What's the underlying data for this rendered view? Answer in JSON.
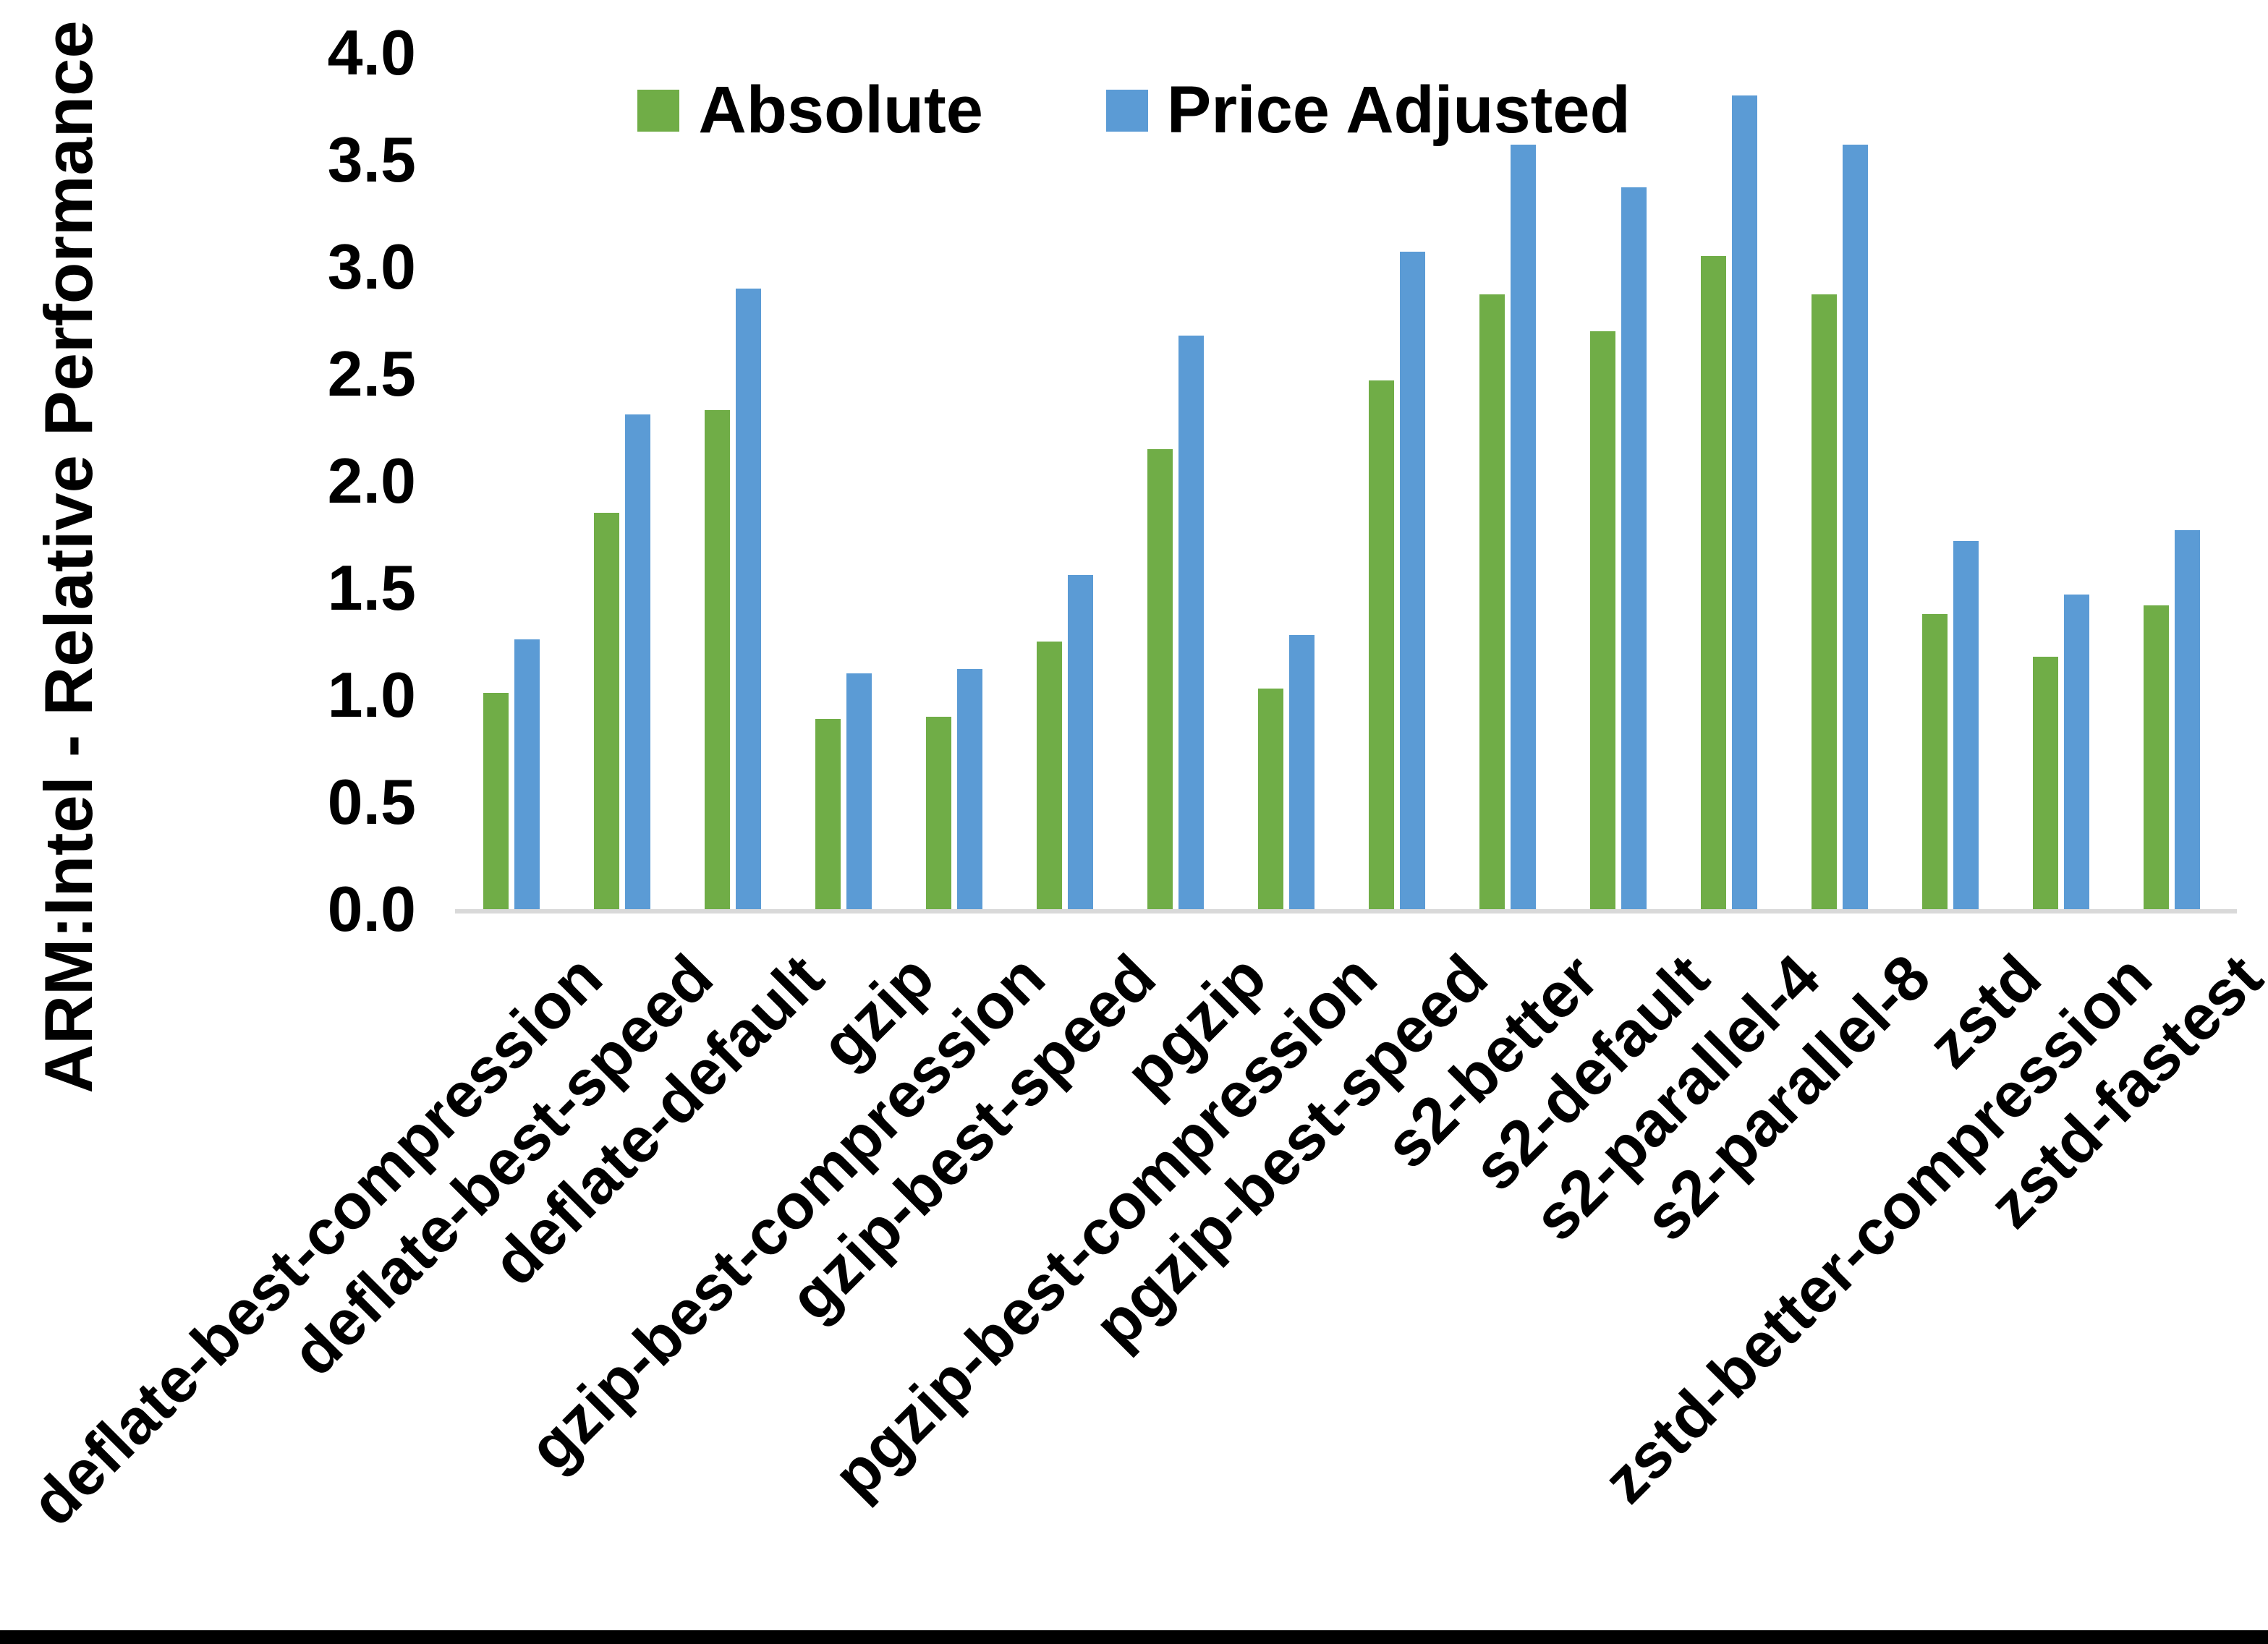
{
  "window": {
    "background_color": "#ffffff",
    "bottom_border_color": "#000000"
  },
  "chart_data": {
    "type": "bar",
    "title": "",
    "y_axis_title": "ARM:Intel - Relative Performance",
    "x_axis_title": "",
    "ylim": [
      0.0,
      4.0
    ],
    "ytick_labels": [
      "0.0",
      "0.5",
      "1.0",
      "1.5",
      "2.0",
      "2.5",
      "3.0",
      "3.5",
      "4.0"
    ],
    "grid": false,
    "legend_position": "top-center",
    "axis_line_color": "#d9d9d9",
    "text_color": "#000000",
    "categories": [
      "deflate-best-compression",
      "deflate-best-speed",
      "deflate-default",
      "gzip",
      "gzip-best-compression",
      "gzip-best-speed",
      "pgzip",
      "pgzip-best-compression",
      "pgzip-best-speed",
      "s2-better",
      "s2-default",
      "s2-parallel-4",
      "s2-parallel-8",
      "zstd",
      "zstd-better-compression",
      "zstd-fastest"
    ],
    "series": [
      {
        "name": "Absolute",
        "color": "#70AD47",
        "values": [
          1.01,
          1.85,
          2.33,
          0.89,
          0.9,
          1.25,
          2.15,
          1.03,
          2.47,
          2.87,
          2.7,
          3.05,
          2.87,
          1.38,
          1.18,
          1.42
        ]
      },
      {
        "name": "Price Adjusted",
        "color": "#5B9BD5",
        "values": [
          1.26,
          2.31,
          2.9,
          1.1,
          1.12,
          1.56,
          2.68,
          1.28,
          3.07,
          3.57,
          3.37,
          3.8,
          3.57,
          1.72,
          1.47,
          1.77
        ]
      }
    ]
  }
}
